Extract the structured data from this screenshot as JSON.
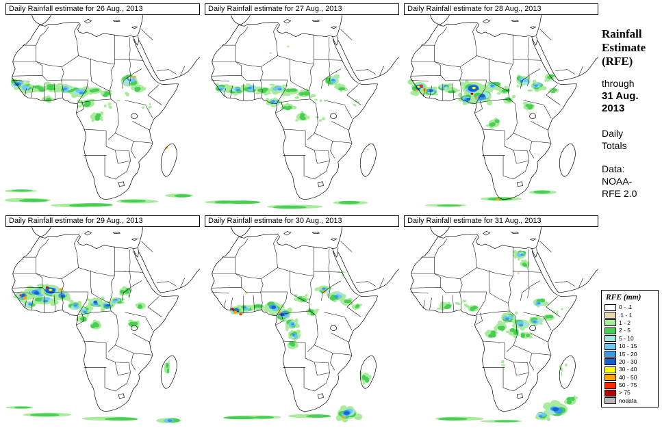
{
  "panels": [
    {
      "title": "Daily Rainfall estimate for 26 Aug., 2013"
    },
    {
      "title": "Daily Rainfall estimate for 27 Aug., 2013"
    },
    {
      "title": "Daily Rainfall estimate for 28 Aug., 2013"
    },
    {
      "title": "Daily Rainfall estimate for 29 Aug., 2013"
    },
    {
      "title": "Daily Rainfall estimate for 30 Aug., 2013"
    },
    {
      "title": "Daily Rainfall estimate for 31 Aug., 2013"
    }
  ],
  "sidebar": {
    "title_lines": [
      "Rainfall",
      "Estimate",
      "(RFE)"
    ],
    "through": "through",
    "date_lines": [
      "31 Aug.",
      "2013"
    ],
    "totals_lines": [
      "Daily",
      "Totals"
    ],
    "data_label": "Data:",
    "data_lines": [
      "NOAA-",
      "RFE 2.0"
    ]
  },
  "legend": {
    "title": "RFE (mm)",
    "items": [
      {
        "label": "0 - .1",
        "color": "#ffffff"
      },
      {
        "label": ".1 - 1",
        "color": "#e8d8b0"
      },
      {
        "label": "1 - 2",
        "color": "#a8eb9b"
      },
      {
        "label": "2 - 5",
        "color": "#46cf52"
      },
      {
        "label": "5 - 10",
        "color": "#a5e6e0"
      },
      {
        "label": "10 - 15",
        "color": "#6fc9f2"
      },
      {
        "label": "15 - 20",
        "color": "#3a9ae6"
      },
      {
        "label": "20 - 30",
        "color": "#1263cf"
      },
      {
        "label": "30 - 40",
        "color": "#ffff00"
      },
      {
        "label": "40 - 50",
        "color": "#ffa500"
      },
      {
        "label": "50 - 75",
        "color": "#ff2a00"
      },
      {
        "label": "> 75",
        "color": "#b40000"
      },
      {
        "label": "nodata",
        "color": "#b8b8b8"
      }
    ]
  }
}
